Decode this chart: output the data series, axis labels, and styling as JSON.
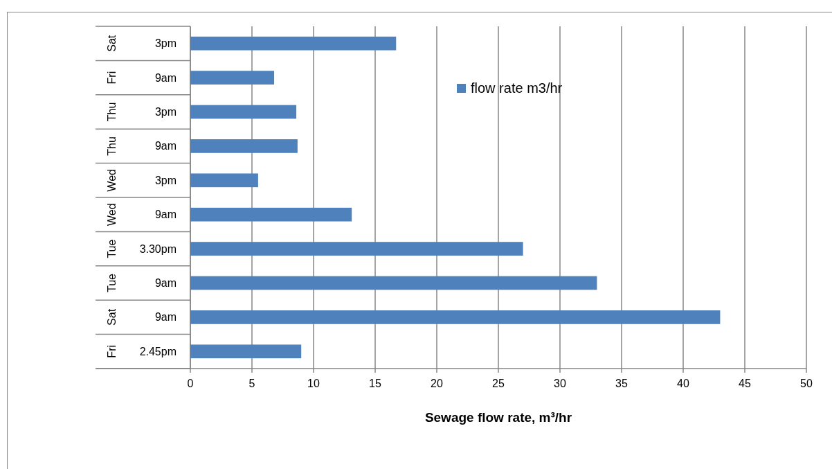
{
  "chart_data": {
    "type": "bar",
    "orientation": "horizontal",
    "xlabel": "Sewage flow rate, m³/hr",
    "categories": [
      "Sat 3pm",
      "Fri 9am",
      "Thu 3pm",
      "Thu 9am",
      "Wed 3pm",
      "Wed 9am",
      "Tue 3.30pm",
      "Tue 9am",
      "Sat 9am",
      "Fri 2.45pm"
    ],
    "series": [
      {
        "name": "flow rate m3/hr",
        "color": "#4f81bd",
        "values": [
          16.7,
          6.8,
          8.6,
          8.7,
          5.5,
          13.1,
          27.0,
          33.0,
          43.0,
          9.0
        ]
      }
    ],
    "xlim": [
      0,
      50
    ],
    "xticks": [
      0,
      5,
      10,
      15,
      20,
      25,
      30,
      35,
      40,
      45,
      50
    ],
    "grid": "x",
    "legend": "top right"
  }
}
